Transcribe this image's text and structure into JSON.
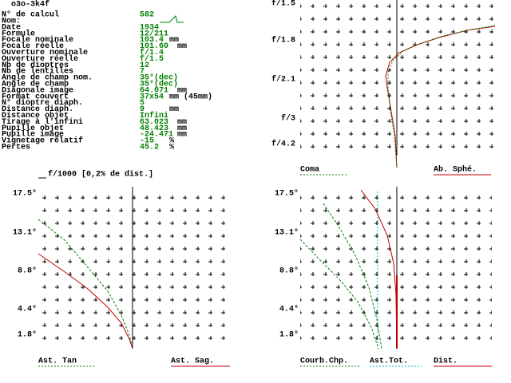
{
  "header": {
    "title": "o3o-3k4f"
  },
  "params": [
    {
      "label": "N° de calcul",
      "value": "582"
    },
    {
      "label": "Nom:"
    },
    {
      "label": "Date",
      "value": "1934"
    },
    {
      "label": "Formule",
      "value": "12/211"
    },
    {
      "label": "Focale nominale",
      "value": "103.4",
      "unit": "mm"
    },
    {
      "label": "Focale réelle",
      "value": "101.60",
      "unit": "mm"
    },
    {
      "label": "Ouverture nominale",
      "value": "f/1.4"
    },
    {
      "label": "Ouverture réelle",
      "value": "f/1.5"
    },
    {
      "label": "Nb de dioptres",
      "value": "12"
    },
    {
      "label": "Nb de lentilles",
      "value": "7"
    },
    {
      "label": "Angle de champ nom.",
      "value": "35°(dec)"
    },
    {
      "label": "Angle de champ",
      "value": "35°(dec)"
    },
    {
      "label": "Diagonale image",
      "value": "64.071",
      "unit": "mm"
    },
    {
      "label": "Format couvert",
      "value": "37x54",
      "unit": "mm (45mm)"
    },
    {
      "label": "N° dioptre diaph.",
      "value": "5"
    },
    {
      "label": "Distance diaph.",
      "value": "9",
      "unit": "mm"
    },
    {
      "label": "Distance objet",
      "value": "Infini"
    },
    {
      "label": "Tirage à l'infini",
      "value": "63.023",
      "unit": "mm"
    },
    {
      "label": "Pupille objet",
      "value": "48.423",
      "unit": "mm"
    },
    {
      "label": "Pupille image",
      "value": "-24.471",
      "unit": "mm"
    },
    {
      "label": "Vignetage relatif",
      "value": "-15",
      "unit": "%"
    },
    {
      "label": "Pertes",
      "value": "45.2",
      "unit": "%"
    }
  ],
  "scale_note": "f/1000 [0,2% de dist.]",
  "plots": [
    {
      "yticks": [
        "f/1.5",
        "f/1.8",
        "f/2.1",
        "f/3",
        "f/4.2"
      ],
      "legend": [
        "Coma",
        "Ab. Sphé."
      ]
    },
    {
      "yticks": [
        "17.5°",
        "13.1°",
        "8.8°",
        "4.4°",
        "1.8°"
      ],
      "legend": [
        "Ast. Tan",
        "Ast. Sag."
      ]
    },
    {
      "yticks": [
        "17.5°",
        "13.1°",
        "8.8°",
        "4.4°",
        "1.8°"
      ],
      "legend": [
        "Courb.Chp.",
        "Ast.Tot.",
        "Dist."
      ]
    }
  ]
}
